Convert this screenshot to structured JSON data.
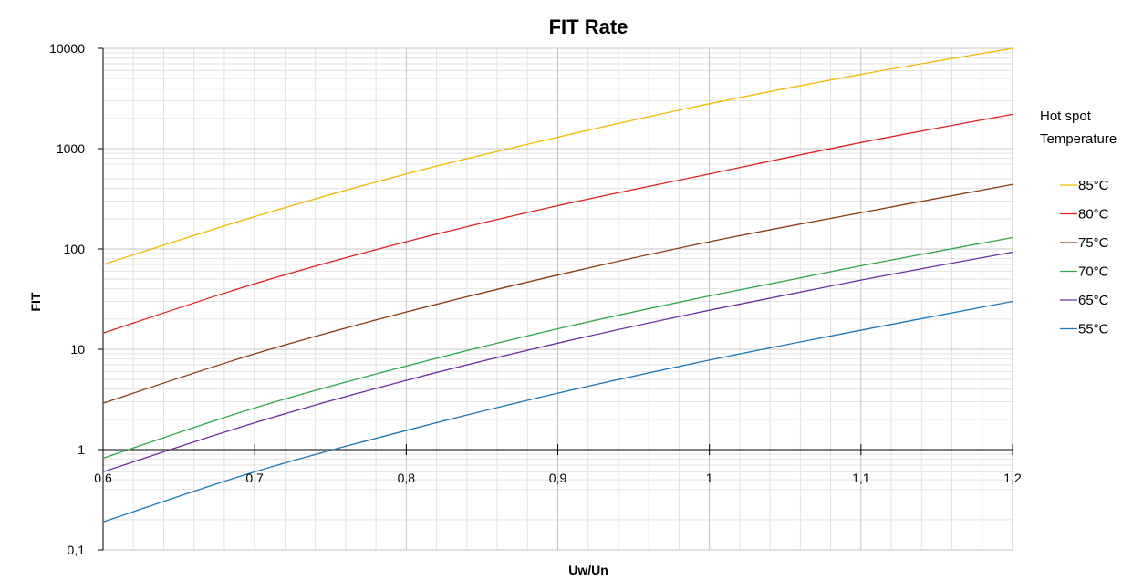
{
  "chart_data": {
    "type": "line",
    "title": "FIT Rate",
    "xlabel": "Uw/Un",
    "ylabel": "FIT",
    "x_scale": "linear",
    "y_scale": "log",
    "xlim": [
      0.6,
      1.2
    ],
    "ylim": [
      0.1,
      10000
    ],
    "x_ticks": [
      0.6,
      0.7,
      0.8,
      0.9,
      1.0,
      1.1,
      1.2
    ],
    "x_tick_labels": [
      "0,6",
      "0,7",
      "0,8",
      "0,9",
      "1",
      "1,1",
      "1,2"
    ],
    "y_ticks": [
      0.1,
      1,
      10,
      100,
      1000,
      10000
    ],
    "y_tick_labels": [
      "0,1",
      "1",
      "10",
      "100",
      "1000",
      "10000"
    ],
    "x_axis_crosses_at": 1,
    "grid": true,
    "legend_title": "Hot spot Temperature",
    "legend_title_lines": [
      "Hot spot",
      "Temperature"
    ],
    "legend_position": "right",
    "series": [
      {
        "name": "85°C",
        "color": "#F2B800",
        "x": [
          0.6,
          0.7,
          0.8,
          0.9,
          1.0,
          1.1,
          1.2
        ],
        "y": [
          70,
          210,
          560,
          1300,
          2800,
          5500,
          10000
        ]
      },
      {
        "name": "80°C",
        "color": "#E02020",
        "x": [
          0.6,
          0.7,
          0.8,
          0.9,
          1.0,
          1.1,
          1.2
        ],
        "y": [
          14.5,
          45,
          118,
          270,
          560,
          1150,
          2200
        ]
      },
      {
        "name": "75°C",
        "color": "#8B3A0F",
        "x": [
          0.6,
          0.7,
          0.8,
          0.9,
          1.0,
          1.1,
          1.2
        ],
        "y": [
          2.9,
          9,
          23.5,
          55,
          118,
          230,
          440
        ]
      },
      {
        "name": "70°C",
        "color": "#2EA84A",
        "x": [
          0.6,
          0.7,
          0.8,
          0.9,
          1.0,
          1.1,
          1.2
        ],
        "y": [
          0.82,
          2.6,
          6.8,
          16,
          34,
          68,
          130
        ]
      },
      {
        "name": "65°C",
        "color": "#6A2FA0",
        "x": [
          0.6,
          0.7,
          0.8,
          0.9,
          1.0,
          1.1,
          1.2
        ],
        "y": [
          0.6,
          1.85,
          4.9,
          11.5,
          24.5,
          49,
          93
        ]
      },
      {
        "name": "55°C",
        "color": "#1F77B4",
        "x": [
          0.6,
          0.7,
          0.8,
          0.9,
          1.0,
          1.1,
          1.2
        ],
        "y": [
          0.19,
          0.6,
          1.55,
          3.65,
          7.8,
          15.5,
          30
        ]
      }
    ]
  }
}
